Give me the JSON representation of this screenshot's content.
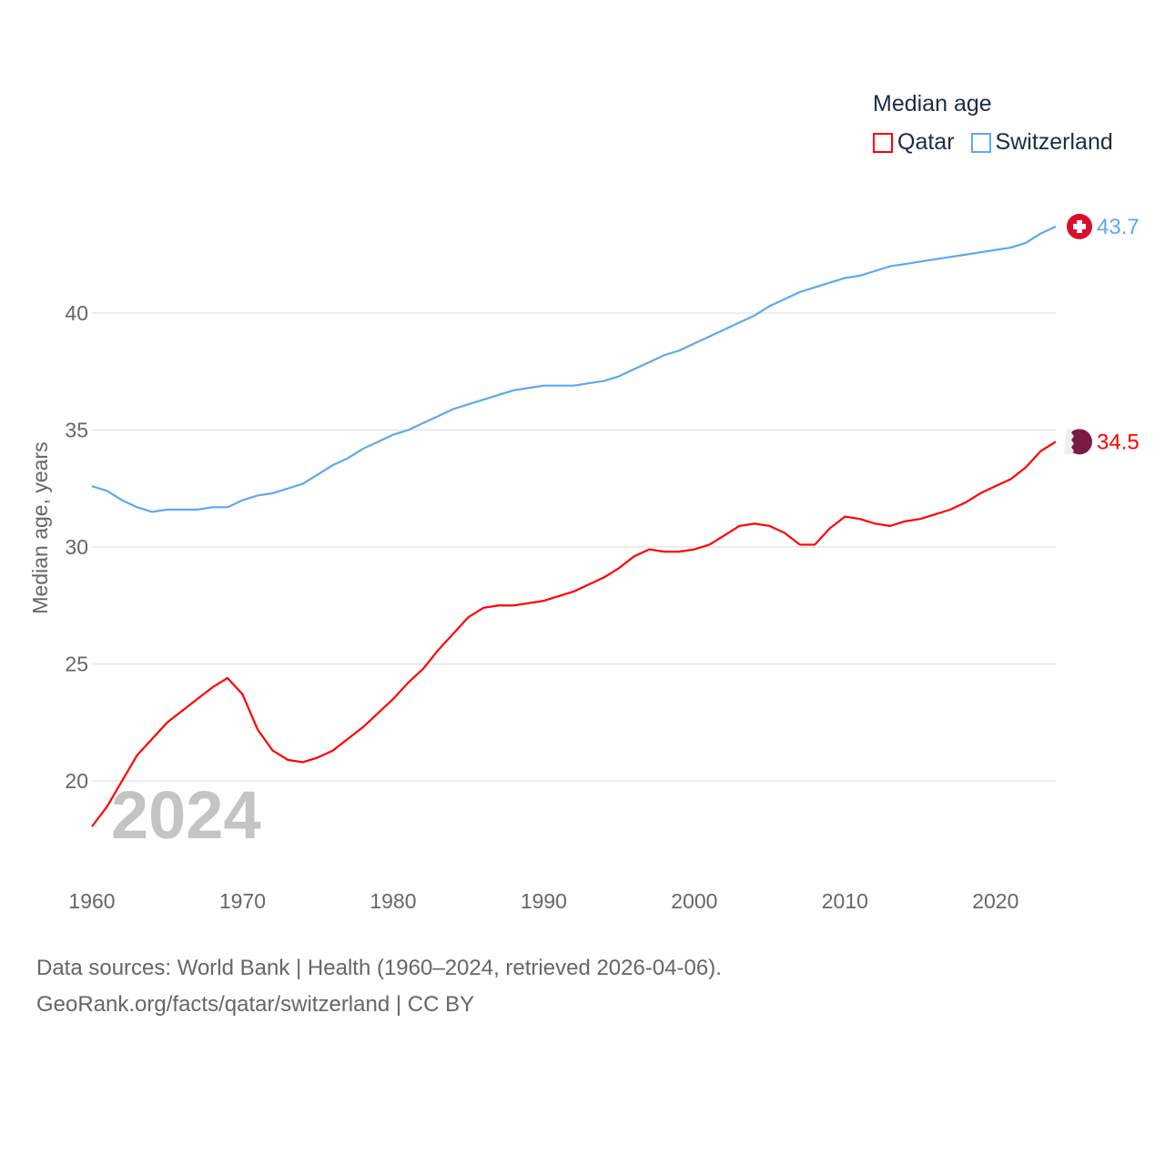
{
  "chart_data": {
    "type": "line",
    "title": "Median age",
    "xlabel": "",
    "ylabel": "Median age, years",
    "xlim": [
      1960,
      2024
    ],
    "ylim": [
      17.5,
      45
    ],
    "yticks": [
      20,
      25,
      30,
      35,
      40
    ],
    "xticks": [
      1960,
      1970,
      1980,
      1990,
      2000,
      2010,
      2020
    ],
    "grid": true,
    "legend_placement": "top-right",
    "year_label": "2024",
    "x": [
      1960,
      1961,
      1962,
      1963,
      1964,
      1965,
      1966,
      1967,
      1968,
      1969,
      1970,
      1971,
      1972,
      1973,
      1974,
      1975,
      1976,
      1977,
      1978,
      1979,
      1980,
      1981,
      1982,
      1983,
      1984,
      1985,
      1986,
      1987,
      1988,
      1989,
      1990,
      1991,
      1992,
      1993,
      1994,
      1995,
      1996,
      1997,
      1998,
      1999,
      2000,
      2001,
      2002,
      2003,
      2004,
      2005,
      2006,
      2007,
      2008,
      2009,
      2010,
      2011,
      2012,
      2013,
      2014,
      2015,
      2016,
      2017,
      2018,
      2019,
      2020,
      2021,
      2022,
      2023,
      2024
    ],
    "series": [
      {
        "name": "Qatar",
        "color": "#ff0000",
        "end_label": "34.5",
        "flag_color": "#7a1b45",
        "values": [
          18.05,
          18.9,
          20.0,
          21.1,
          21.8,
          22.5,
          23.0,
          23.5,
          24.0,
          24.4,
          23.7,
          22.2,
          21.3,
          20.9,
          20.8,
          21.0,
          21.3,
          21.8,
          22.3,
          22.9,
          23.5,
          24.2,
          24.8,
          25.6,
          26.3,
          27.0,
          27.4,
          27.5,
          27.5,
          27.6,
          27.7,
          27.9,
          28.1,
          28.4,
          28.7,
          29.1,
          29.6,
          29.9,
          29.8,
          29.8,
          29.9,
          30.1,
          30.5,
          30.9,
          31.0,
          30.9,
          30.6,
          30.1,
          30.1,
          30.8,
          31.3,
          31.2,
          31.0,
          30.9,
          31.1,
          31.2,
          31.4,
          31.6,
          31.9,
          32.3,
          32.6,
          32.9,
          33.4,
          34.1,
          34.5
        ]
      },
      {
        "name": "Switzerland",
        "color": "#5ea8ee",
        "end_label": "43.7",
        "flag_color": "#da0d2f",
        "values": [
          32.6,
          32.4,
          32.0,
          31.7,
          31.5,
          31.6,
          31.6,
          31.6,
          31.7,
          31.7,
          32.0,
          32.2,
          32.3,
          32.5,
          32.7,
          33.1,
          33.5,
          33.8,
          34.2,
          34.5,
          34.8,
          35.0,
          35.3,
          35.6,
          35.9,
          36.1,
          36.3,
          36.5,
          36.7,
          36.8,
          36.9,
          36.9,
          36.9,
          37.0,
          37.1,
          37.3,
          37.6,
          37.9,
          38.2,
          38.4,
          38.7,
          39.0,
          39.3,
          39.6,
          39.9,
          40.3,
          40.6,
          40.9,
          41.1,
          41.3,
          41.5,
          41.6,
          41.8,
          42.0,
          42.1,
          42.2,
          42.3,
          42.4,
          42.5,
          42.6,
          42.7,
          42.8,
          43.0,
          43.4,
          43.7
        ]
      }
    ]
  },
  "footer": {
    "sources": "Data sources: World Bank | Health (1960–2024, retrieved 2026-04-06).",
    "link": "GeoRank.org/facts/qatar/switzerland | CC BY"
  }
}
